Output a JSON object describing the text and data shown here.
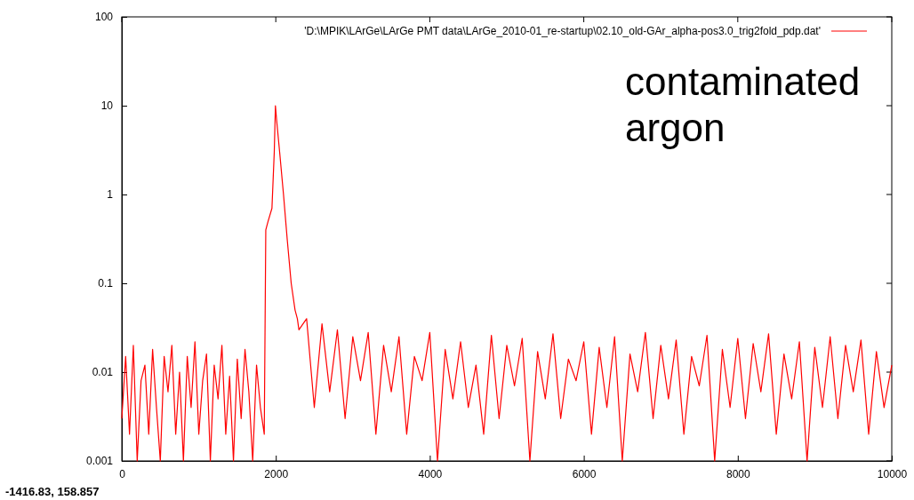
{
  "chart_data": {
    "type": "line",
    "log": "y",
    "xlim": [
      0,
      10000
    ],
    "ylim": [
      0.001,
      100
    ],
    "xticks": [
      0,
      2000,
      4000,
      6000,
      8000,
      10000
    ],
    "yticks": [
      100,
      10,
      1,
      0.1,
      0.01,
      0.001
    ],
    "legend": "top right",
    "line_style": "solid",
    "marker": "none",
    "grid": false,
    "annotations": [
      "contaminated argon",
      "-1416.83,  158.857"
    ],
    "series": [
      {
        "name": "'D:\\MPIK\\LArGe\\LArGe PMT data\\LArGe_2010-01_re-startup\\02.10_old-GAr_alpha-pos3.0_trig2fold_pdp.dat'",
        "color": "#ff0000",
        "x": [
          0,
          50,
          100,
          150,
          200,
          250,
          300,
          350,
          400,
          450,
          500,
          550,
          600,
          650,
          700,
          750,
          800,
          850,
          900,
          950,
          1000,
          1050,
          1100,
          1150,
          1200,
          1250,
          1300,
          1350,
          1400,
          1450,
          1500,
          1550,
          1600,
          1650,
          1700,
          1750,
          1800,
          1850,
          1870,
          1900,
          1950,
          1980,
          1995,
          2010,
          2050,
          2100,
          2150,
          2200,
          2250,
          2280,
          2300,
          2400,
          2500,
          2600,
          2700,
          2800,
          2900,
          3000,
          3100,
          3200,
          3300,
          3400,
          3500,
          3600,
          3700,
          3800,
          3900,
          4000,
          4100,
          4200,
          4300,
          4400,
          4500,
          4600,
          4700,
          4800,
          4900,
          5000,
          5100,
          5200,
          5300,
          5400,
          5500,
          5600,
          5700,
          5800,
          5900,
          6000,
          6100,
          6200,
          6300,
          6400,
          6500,
          6600,
          6700,
          6800,
          6900,
          7000,
          7100,
          7200,
          7300,
          7400,
          7500,
          7600,
          7700,
          7800,
          7900,
          8000,
          8100,
          8200,
          8300,
          8400,
          8500,
          8600,
          8700,
          8800,
          8900,
          9000,
          9100,
          9200,
          9300,
          9400,
          9500,
          9600,
          9700,
          9800,
          9900,
          10000
        ],
        "values": [
          0.003,
          0.015,
          0.002,
          0.02,
          0.001,
          0.008,
          0.012,
          0.002,
          0.018,
          0.004,
          0.001,
          0.015,
          0.006,
          0.02,
          0.002,
          0.01,
          0.001,
          0.015,
          0.004,
          0.022,
          0.002,
          0.008,
          0.016,
          0.001,
          0.012,
          0.005,
          0.02,
          0.002,
          0.009,
          0.001,
          0.014,
          0.003,
          0.018,
          0.006,
          0.001,
          0.012,
          0.004,
          0.002,
          0.4,
          0.5,
          0.7,
          3,
          10,
          7,
          3,
          1,
          0.3,
          0.1,
          0.05,
          0.04,
          0.03,
          0.04,
          0.004,
          0.035,
          0.006,
          0.03,
          0.003,
          0.025,
          0.008,
          0.028,
          0.002,
          0.02,
          0.006,
          0.025,
          0.002,
          0.015,
          0.008,
          0.028,
          0.001,
          0.018,
          0.005,
          0.022,
          0.004,
          0.012,
          0.002,
          0.026,
          0.003,
          0.02,
          0.007,
          0.024,
          0.001,
          0.017,
          0.005,
          0.027,
          0.003,
          0.014,
          0.008,
          0.022,
          0.002,
          0.019,
          0.004,
          0.025,
          0.001,
          0.016,
          0.006,
          0.028,
          0.003,
          0.02,
          0.005,
          0.023,
          0.002,
          0.015,
          0.007,
          0.026,
          0.001,
          0.018,
          0.004,
          0.024,
          0.003,
          0.021,
          0.006,
          0.027,
          0.002,
          0.016,
          0.005,
          0.022,
          0.001,
          0.019,
          0.004,
          0.025,
          0.003,
          0.02,
          0.006,
          0.023,
          0.002,
          0.017,
          0.004,
          0.012
        ]
      }
    ]
  }
}
